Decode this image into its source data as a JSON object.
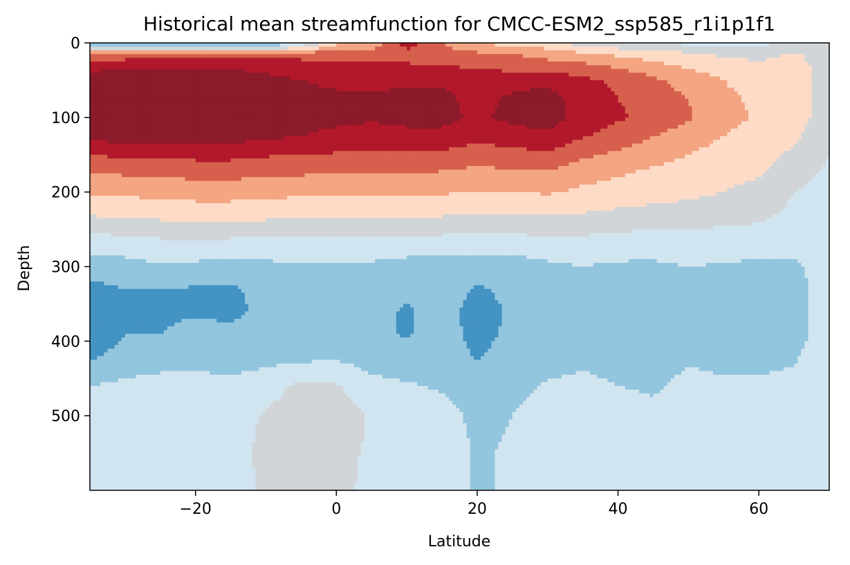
{
  "chart_data": {
    "type": "heatmap",
    "title": "Historical mean streamfunction for CMCC-ESM2_ssp585_r1i1p1f1",
    "xlabel": "Latitude",
    "ylabel": "Depth",
    "xlim": [
      -35,
      70
    ],
    "ylim": [
      600,
      0
    ],
    "y_inverted": true,
    "xticks": [
      -20,
      0,
      20,
      40,
      60
    ],
    "xtick_labels": [
      "−20",
      "0",
      "20",
      "40",
      "60"
    ],
    "yticks": [
      0,
      100,
      200,
      300,
      400,
      500
    ],
    "ytick_labels": [
      "0",
      "100",
      "200",
      "300",
      "400",
      "500"
    ],
    "colormap": "diverging blue-white-red (RdBu_r)",
    "legend": "none",
    "grid": false,
    "latitude": [
      -35,
      -30,
      -25,
      -20,
      -15,
      -10,
      -5,
      0,
      5,
      10,
      15,
      20,
      25,
      30,
      35,
      40,
      45,
      50,
      55,
      60,
      65,
      70
    ],
    "depth": [
      0,
      15,
      30,
      50,
      75,
      100,
      125,
      150,
      175,
      200,
      225,
      250,
      275,
      300,
      330,
      360,
      390,
      420,
      460,
      500,
      550,
      600
    ],
    "z_levels": [
      -6,
      -5,
      -4,
      -3,
      -2,
      -1,
      0,
      1,
      2,
      3,
      4,
      5,
      6
    ],
    "level_colors": [
      "#2a2f8f",
      "#2166ac",
      "#4393c3",
      "#92c5de",
      "#d1e5f0",
      "#d1d5d8",
      "#fddbc7",
      "#f4a582",
      "#d6604d",
      "#b2182b",
      "#8b1a2b",
      "#67001f"
    ],
    "z_rows": [
      [
        -3,
        -3,
        -4,
        -4,
        -4,
        -3.5,
        -2,
        0.8,
        1.2,
        3.5,
        2,
        1,
        0.6,
        0.3,
        -0.5,
        -0.8,
        -1,
        -1.3,
        -1.5,
        -1.2,
        -1,
        -0.8
      ],
      [
        2,
        2.2,
        2.4,
        2.6,
        2.6,
        2.6,
        2.6,
        2.5,
        2.5,
        2.6,
        2.4,
        2.2,
        2,
        1.6,
        1.2,
        0.8,
        0.4,
        0.2,
        -0.2,
        -0.5,
        0.2,
        -0.7
      ],
      [
        3.6,
        3.8,
        3.9,
        3.9,
        3.8,
        3.6,
        3.4,
        3.2,
        3.1,
        3.1,
        3,
        2.8,
        2.6,
        2.4,
        2.2,
        1.8,
        1.3,
        0.8,
        0.6,
        0.3,
        0.4,
        -0.5
      ],
      [
        4.5,
        4.7,
        4.7,
        4.6,
        4.6,
        4.3,
        4,
        3.8,
        3.8,
        3.9,
        3.8,
        3.5,
        3.6,
        3.8,
        3.2,
        2.8,
        2.2,
        1.5,
        1,
        0.6,
        0.5,
        -0.5
      ],
      [
        4.8,
        4.9,
        4.9,
        4.8,
        4.8,
        4.5,
        4.3,
        4.2,
        4.1,
        4.2,
        4.3,
        3.6,
        4.2,
        4.4,
        3.5,
        3,
        2.7,
        2,
        1.2,
        0.8,
        0.6,
        -0.5
      ],
      [
        4.8,
        4.9,
        4.9,
        4.8,
        4.8,
        4.5,
        4.3,
        4.2,
        4.1,
        4.2,
        4.3,
        3.8,
        4.3,
        4.5,
        3.6,
        3.1,
        2.8,
        2.1,
        1.3,
        0.9,
        0.5,
        -0.6
      ],
      [
        4.3,
        4.5,
        4.5,
        4.4,
        4.4,
        4.2,
        4,
        3.8,
        3.7,
        3.8,
        3.7,
        3.3,
        3.5,
        3.8,
        3.1,
        2.6,
        2,
        1.5,
        1,
        0.6,
        0.2,
        -0.8
      ],
      [
        3,
        3.2,
        3.3,
        3.3,
        3.3,
        3.1,
        3,
        2.9,
        2.8,
        2.8,
        2.8,
        2.5,
        2.7,
        2.8,
        2.2,
        1.8,
        1.4,
        1,
        0.6,
        0.4,
        -0.2,
        -1
      ],
      [
        2,
        2.1,
        2.2,
        2.3,
        2.3,
        2.2,
        2.1,
        2,
        2,
        2,
        1.9,
        1.7,
        1.8,
        1.9,
        1.4,
        1.1,
        0.8,
        0.6,
        0.3,
        0.1,
        -0.6,
        -1.2
      ],
      [
        1.1,
        1.2,
        1.3,
        1.4,
        1.4,
        1.3,
        1.2,
        1.2,
        1.2,
        1.2,
        1.1,
        1,
        1,
        1.1,
        0.8,
        0.6,
        0.4,
        0.2,
        0,
        -0.3,
        -1,
        -1.3
      ],
      [
        0.3,
        0.4,
        0.5,
        0.6,
        0.6,
        0.5,
        0.4,
        0.4,
        0.4,
        0.4,
        0.3,
        0.2,
        0.2,
        0.3,
        0.1,
        -0.1,
        -0.2,
        -0.3,
        -0.4,
        -0.6,
        -1.2,
        -1.4
      ],
      [
        -0.8,
        -0.6,
        -0.5,
        -0.4,
        -0.4,
        -0.5,
        -0.6,
        -0.6,
        -0.6,
        -0.6,
        -0.7,
        -0.8,
        -0.8,
        -0.7,
        -0.8,
        -0.9,
        -1,
        -1,
        -1.1,
        -1.2,
        -1.5,
        -1.5
      ],
      [
        -1.8,
        -1.7,
        -1.5,
        -1.5,
        -1.6,
        -1.6,
        -1.5,
        -1.4,
        -1.5,
        -1.6,
        -1.7,
        -1.7,
        -1.6,
        -1.5,
        -1.4,
        -1.5,
        -1.6,
        -1.5,
        -1.6,
        -1.7,
        -1.8,
        -1.5
      ],
      [
        -2.3,
        -2.3,
        -2.1,
        -2.2,
        -2.4,
        -2.2,
        -2.1,
        -2.1,
        -2.2,
        -2.4,
        -2.5,
        -2.5,
        -2.6,
        -2.2,
        -2,
        -2.2,
        -2.2,
        -2,
        -2.1,
        -2.2,
        -2.2,
        -1.5
      ],
      [
        -3.4,
        -3,
        -3,
        -3.1,
        -3.2,
        -2.6,
        -2.5,
        -2.5,
        -2.6,
        -2.9,
        -2.6,
        -3.1,
        -2.8,
        -2.6,
        -2.3,
        -2.4,
        -2.5,
        -2.3,
        -2.4,
        -2.4,
        -2.3,
        -1.6
      ],
      [
        -3.7,
        -3.2,
        -3.2,
        -3.1,
        -3.3,
        -2.7,
        -2.6,
        -2.6,
        -2.7,
        -3.1,
        -2.7,
        -3.3,
        -2.9,
        -2.7,
        -2.4,
        -2.5,
        -2.6,
        -2.4,
        -2.4,
        -2.4,
        -2.3,
        -1.6
      ],
      [
        -3.8,
        -3,
        -3,
        -2.7,
        -2.7,
        -2.6,
        -2.7,
        -2.5,
        -2.8,
        -3.1,
        -2.6,
        -3.3,
        -2.8,
        -2.6,
        -2.4,
        -2.5,
        -2.6,
        -2.3,
        -2.4,
        -2.4,
        -2.3,
        -1.6
      ],
      [
        -3.2,
        -2.6,
        -2.5,
        -2.4,
        -2.4,
        -2.4,
        -2.3,
        -2.2,
        -2.5,
        -2.7,
        -2.4,
        -3.1,
        -2.6,
        -2.4,
        -2.2,
        -2.3,
        -2.4,
        -2.1,
        -2.2,
        -2.2,
        -2.1,
        -1.5
      ],
      [
        -2,
        -1.8,
        -1.6,
        -1.6,
        -1.8,
        -1.4,
        -0.8,
        -0.9,
        -1.7,
        -1.9,
        -2.1,
        -2.6,
        -2.3,
        -1.9,
        -1.8,
        -2,
        -2.1,
        -1.8,
        -1.9,
        -1.9,
        -1.8,
        -1.4
      ],
      [
        -1.2,
        -1.2,
        -1.1,
        -1.2,
        -1.4,
        -0.9,
        -0.5,
        -0.5,
        -1.1,
        -1.3,
        -1.7,
        -2.2,
        -2,
        -1.6,
        -1.5,
        -1.7,
        -1.8,
        -1.6,
        -1.7,
        -1.7,
        -1.6,
        -1.3
      ],
      [
        -1.2,
        -1.1,
        -1.1,
        -1.2,
        -1.3,
        -0.8,
        -0.7,
        -0.8,
        -1.1,
        -1.2,
        -1.5,
        -2.1,
        -1.9,
        -1.4,
        -1.4,
        -1.6,
        -1.7,
        -1.6,
        -1.6,
        -1.7,
        -1.6,
        -1.3
      ],
      [
        -1.2,
        -1.1,
        -1.1,
        -1.2,
        -1.3,
        -0.9,
        -0.8,
        -0.9,
        -1.1,
        -1.2,
        -1.5,
        -2.1,
        -1.9,
        -1.3,
        -1.4,
        -1.6,
        -1.7,
        -1.6,
        -1.6,
        -1.7,
        -1.6,
        -1.3
      ]
    ]
  }
}
